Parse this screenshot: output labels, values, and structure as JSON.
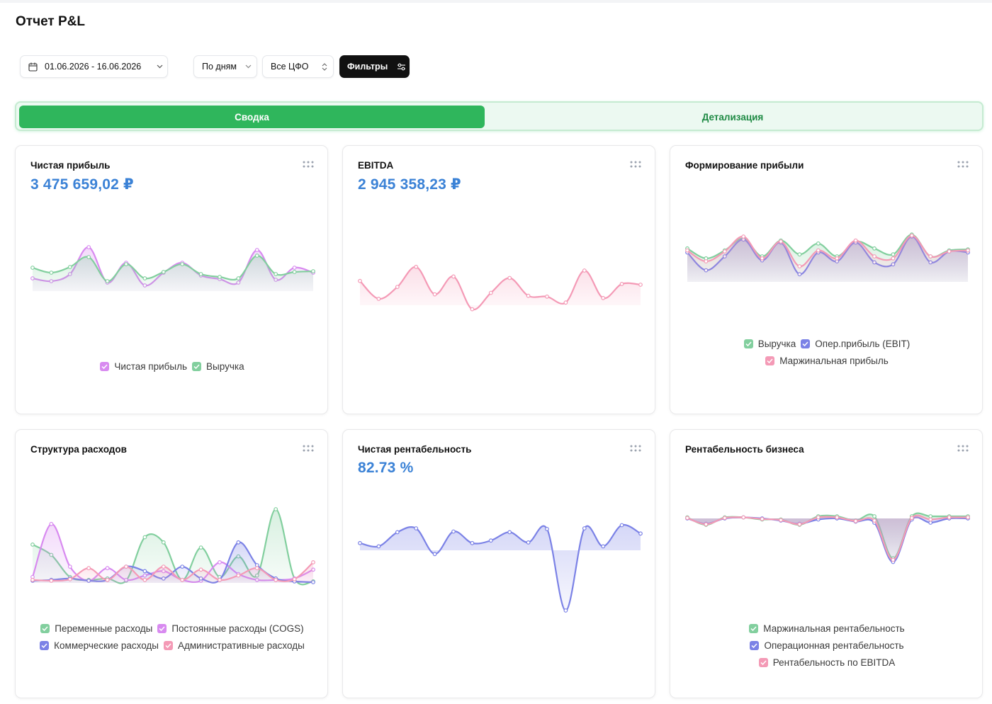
{
  "page": {
    "title": "Отчет P&L"
  },
  "toolbar": {
    "date_range": "01.06.2026 - 16.06.2026",
    "period": "По дням",
    "cfo": "Все ЦФО",
    "filters_label": "Фильтры"
  },
  "tabs": [
    {
      "label": "Сводка",
      "active": true
    },
    {
      "label": "Детализация",
      "active": false
    }
  ],
  "colors": {
    "green": "#82cf9e",
    "violet": "#d88af0",
    "blue": "#7b82e6",
    "pink": "#f49ab6",
    "accent": "#2fb65c",
    "value_blue": "#3b82d6"
  },
  "icons": {
    "date": "calendar-icon",
    "dropdown": "chevron-down-icon",
    "sort": "chevron-up-down-icon",
    "filters": "sliders-icon",
    "menu": "dots-grid-icon",
    "legend": "checkbox-checked-icon"
  },
  "cards": [
    {
      "title": "Чистая прибыль",
      "value": "3 475 659,02 ₽",
      "chart_data": {
        "type": "area",
        "x": [
          1,
          2,
          3,
          4,
          5,
          6,
          7,
          8,
          9,
          10,
          11,
          12,
          13,
          14,
          15,
          16
        ],
        "ylim": [
          0,
          100
        ],
        "series": [
          {
            "name": "Чистая прибыль",
            "color": "#d88af0",
            "values": [
              48,
              44,
              54,
              92,
              42,
              70,
              38,
              56,
              70,
              52,
              47,
              42,
              88,
              46,
              63,
              56
            ]
          },
          {
            "name": "Выручка",
            "color": "#82cf9e",
            "values": [
              63,
              56,
              64,
              78,
              44,
              68,
              48,
              57,
              68,
              54,
              50,
              48,
              80,
              54,
              57,
              58
            ]
          }
        ]
      }
    },
    {
      "title": "EBITDA",
      "value": "2 945 358,23 ₽",
      "chart_data": {
        "type": "area",
        "x": [
          1,
          2,
          3,
          4,
          5,
          6,
          7,
          8,
          9,
          10,
          11,
          12,
          13,
          14,
          15,
          16
        ],
        "ylim": [
          0,
          100
        ],
        "series": [
          {
            "name": "EBITDA",
            "color": "#f49ab6",
            "values": [
              66,
              42,
              58,
              85,
              48,
              72,
              28,
              50,
              70,
              46,
              45,
              37,
              80,
              43,
              62,
              61
            ]
          }
        ]
      }
    },
    {
      "title": "Формирование прибыли",
      "chart_data": {
        "type": "area",
        "x": [
          1,
          2,
          3,
          4,
          5,
          6,
          7,
          8,
          9,
          10,
          11,
          12,
          13,
          14,
          15,
          16
        ],
        "ylim": [
          0,
          100
        ],
        "series": [
          {
            "name": "Выручка",
            "color": "#82cf9e",
            "values": [
              68,
              58,
              66,
              78,
              60,
              76,
              62,
              73,
              60,
              75,
              68,
              62,
              82,
              60,
              66,
              67
            ]
          },
          {
            "name": "Опер.прибыль (EBIT)",
            "color": "#7b82e6",
            "values": [
              64,
              46,
              60,
              77,
              56,
              74,
              42,
              64,
              55,
              74,
              54,
              52,
              80,
              54,
              65,
              64
            ]
          },
          {
            "name": "Маржинальная прибыль",
            "color": "#f49ab6",
            "values": [
              66,
              55,
              65,
              80,
              58,
              75,
              50,
              66,
              58,
              76,
              60,
              58,
              81,
              60,
              65,
              66
            ]
          }
        ]
      },
      "legend_rows": [
        [
          {
            "label": "Выручка",
            "color": "#82cf9e"
          },
          {
            "label": "Опер.прибыль (EBIT)",
            "color": "#7b82e6"
          }
        ],
        [
          {
            "label": "Маржинальная прибыль",
            "color": "#f49ab6"
          }
        ]
      ]
    },
    {
      "title": "Структура расходов",
      "chart_data": {
        "type": "area",
        "x": [
          1,
          2,
          3,
          4,
          5,
          6,
          7,
          8,
          9,
          10,
          11,
          12,
          13,
          14,
          15,
          16
        ],
        "ylim": [
          0,
          100
        ],
        "series": [
          {
            "name": "Переменные расходы",
            "color": "#82cf9e",
            "values": [
              52,
              38,
              8,
              4,
              6,
              3,
              62,
              55,
              4,
              48,
              8,
              36,
              10,
              100,
              6,
              2
            ]
          },
          {
            "name": "Постоянные расходы (COGS)",
            "color": "#d88af0",
            "values": [
              8,
              80,
              22,
              3,
              20,
              4,
              10,
              16,
              4,
              3,
              28,
              12,
              4,
              4,
              6,
              18
            ]
          },
          {
            "name": "Коммерческие расходы",
            "color": "#7b82e6",
            "values": [
              3,
              4,
              6,
              3,
              4,
              22,
              16,
              6,
              22,
              6,
              4,
              55,
              24,
              6,
              2,
              1
            ]
          },
          {
            "name": "Административные расходы",
            "color": "#f49ab6",
            "values": [
              4,
              3,
              5,
              20,
              4,
              22,
              4,
              22,
              4,
              18,
              4,
              10,
              20,
              4,
              5,
              28
            ]
          }
        ]
      },
      "legend_rows": [
        [
          {
            "label": "Переменные расходы",
            "color": "#82cf9e"
          },
          {
            "label": "Постоянные расходы (COGS)",
            "color": "#d88af0"
          }
        ],
        [
          {
            "label": "Коммерческие расходы",
            "color": "#7b82e6"
          },
          {
            "label": "Административные расходы",
            "color": "#f49ab6"
          }
        ]
      ]
    },
    {
      "title": "Чистая рентабельность",
      "value": "82.73 %",
      "chart_data": {
        "type": "area",
        "x": [
          1,
          2,
          3,
          4,
          5,
          6,
          7,
          8,
          9,
          10,
          11,
          12,
          13,
          14,
          15,
          16
        ],
        "ylim": [
          -100,
          60
        ],
        "series": [
          {
            "name": "Чистая рентабельность",
            "color": "#7b82e6",
            "values": [
              5,
              0,
              22,
              28,
              -12,
              23,
              5,
              9,
              22,
              6,
              27,
              -100,
              28,
              0,
              33,
              20
            ]
          }
        ]
      }
    },
    {
      "title": "Рентабельность бизнеса",
      "chart_data": {
        "type": "area",
        "x": [
          1,
          2,
          3,
          4,
          5,
          6,
          7,
          8,
          9,
          10,
          11,
          12,
          13,
          14,
          15,
          16
        ],
        "ylim": [
          -100,
          20
        ],
        "series": [
          {
            "name": "Маржинальная рентабельность",
            "color": "#82cf9e",
            "values": [
              2,
              -12,
              2,
              2,
              -2,
              -2,
              -12,
              4,
              4,
              -4,
              4,
              -75,
              4,
              4,
              4,
              4
            ]
          },
          {
            "name": "Операционная рентабельность",
            "color": "#7b82e6",
            "values": [
              0,
              -10,
              0,
              2,
              0,
              -4,
              -10,
              -2,
              0,
              -6,
              -8,
              -82,
              -2,
              -8,
              0,
              0
            ]
          },
          {
            "name": "Рентабельность по EBITDA",
            "color": "#f49ab6",
            "values": [
              1,
              -11,
              1,
              2,
              -1,
              -3,
              -11,
              2,
              2,
              -5,
              -4,
              -78,
              1,
              -2,
              2,
              2
            ]
          }
        ]
      },
      "legend_rows": [
        [
          {
            "label": "Маржинальная рентабельность",
            "color": "#82cf9e"
          }
        ],
        [
          {
            "label": "Операционная рентабельность",
            "color": "#7b82e6"
          }
        ],
        [
          {
            "label": "Рентабельность по EBITDA",
            "color": "#f49ab6"
          }
        ]
      ]
    }
  ]
}
